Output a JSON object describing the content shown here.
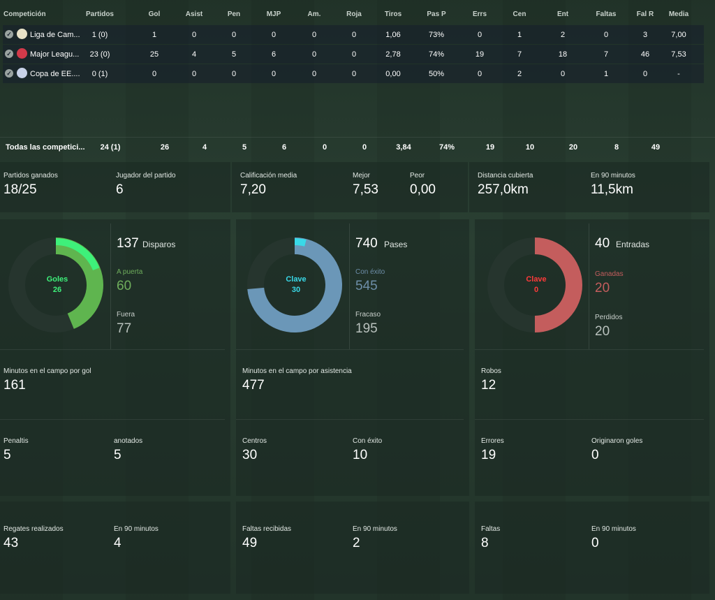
{
  "columns": [
    "Competición",
    "Partidos",
    "Gol",
    "Asist",
    "Pen",
    "MJP",
    "Am.",
    "Roja",
    "Tiros",
    "Pas P",
    "Errs",
    "Cen",
    "Ent",
    "Faltas",
    "Fal R",
    "Media"
  ],
  "rows": [
    {
      "comp": "Liga de Cam...",
      "badge_color": "#e8e2c8",
      "values": [
        "1 (0)",
        "1",
        "0",
        "0",
        "0",
        "0",
        "0",
        "1,06",
        "73%",
        "0",
        "1",
        "2",
        "0",
        "3",
        "7,00"
      ]
    },
    {
      "comp": "Major Leagu...",
      "badge_color": "#d23a4a",
      "values": [
        "23 (0)",
        "25",
        "4",
        "5",
        "6",
        "0",
        "0",
        "2,78",
        "74%",
        "19",
        "7",
        "18",
        "7",
        "46",
        "7,53"
      ]
    },
    {
      "comp": "Copa de EE....",
      "badge_color": "#c8d2e8",
      "values": [
        "0 (1)",
        "0",
        "0",
        "0",
        "0",
        "0",
        "0",
        "0,00",
        "50%",
        "0",
        "2",
        "0",
        "1",
        "0",
        "-"
      ]
    }
  ],
  "totals": {
    "label": "Todas las competici...",
    "values": [
      "24 (1)",
      "26",
      "4",
      "5",
      "6",
      "0",
      "0",
      "3,84",
      "74%",
      "19",
      "10",
      "20",
      "8",
      "49",
      ""
    ]
  },
  "summary": {
    "won_label": "Partidos ganados",
    "won_value": "18/25",
    "pom_label": "Jugador del partido",
    "pom_value": "6",
    "avg_label": "Calificación media",
    "avg_value": "7,20",
    "best_label": "Mejor",
    "best_value": "7,53",
    "worst_label": "Peor",
    "worst_value": "0,00",
    "dist_label": "Distancia cubierta",
    "dist_value": "257,0km",
    "dist90_label": "En 90 minutos",
    "dist90_value": "11,5km"
  },
  "shots": {
    "total": "137",
    "total_label": "Disparos",
    "on_label": "A puerta",
    "on_value": "60",
    "off_label": "Fuera",
    "off_value": "77",
    "center_label": "Goles",
    "center_value": "26",
    "on_fraction": 0.438,
    "goal_fraction": 0.19,
    "color_main": "#5fb54f",
    "color_hi": "#3ef07a"
  },
  "passes": {
    "total": "740",
    "total_label": "Pases",
    "ok_label": "Con éxito",
    "ok_value": "545",
    "fail_label": "Fracaso",
    "fail_value": "195",
    "center_label": "Clave",
    "center_value": "30",
    "ok_fraction": 0.736,
    "key_fraction": 0.04,
    "color_main": "#6b97b8",
    "color_hi": "#39d9e8"
  },
  "tackles": {
    "total": "40",
    "total_label": "Entradas",
    "won_label": "Ganadas",
    "won_value": "20",
    "lost_label": "Perdidos",
    "lost_value": "20",
    "center_label": "Clave",
    "center_value": "0",
    "won_fraction": 0.5,
    "key_fraction": 0,
    "color_main": "#c45d5d",
    "color_hi": "#ff3a3a"
  },
  "goal_stats": {
    "mpg_label": "Minutos en el campo por gol",
    "mpg_value": "161",
    "pen_label": "Penaltis",
    "pen_value": "5",
    "scored_label": "anotados",
    "scored_value": "5"
  },
  "assist_stats": {
    "mpa_label": "Minutos en el campo por asistencia",
    "mpa_value": "477",
    "cross_label": "Centros",
    "cross_value": "30",
    "cross_ok_label": "Con éxito",
    "cross_ok_value": "10"
  },
  "def_stats": {
    "steal_label": "Robos",
    "steal_value": "12",
    "err_label": "Errores",
    "err_value": "19",
    "errgoal_label": "Originaron goles",
    "errgoal_value": "0"
  },
  "bottom": {
    "drib_label": "Regates realizados",
    "drib_value": "43",
    "drib90_label": "En 90 minutos",
    "drib90_value": "4",
    "fouled_label": "Faltas recibidas",
    "fouled_value": "49",
    "fouled90_label": "En 90 minutos",
    "fouled90_value": "2",
    "fouls_label": "Faltas",
    "fouls_value": "8",
    "fouls90_label": "En 90 minutos",
    "fouls90_value": "0"
  }
}
